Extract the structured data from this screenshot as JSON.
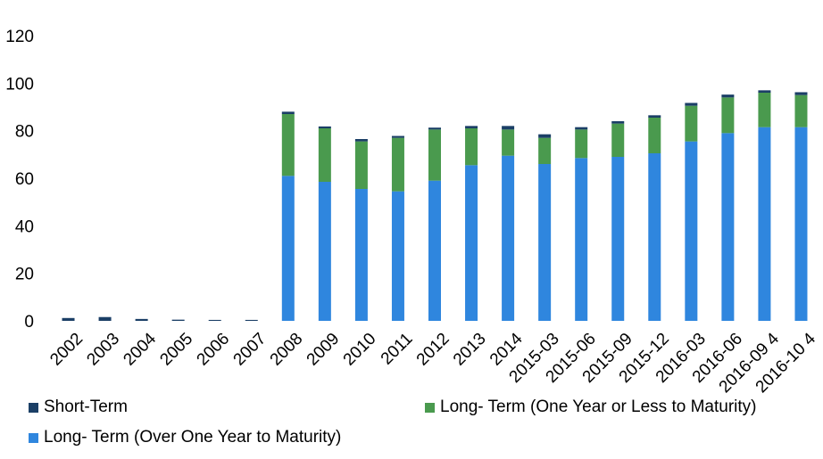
{
  "chart_data": {
    "type": "bar",
    "stacked": true,
    "categories": [
      "2002",
      "2003",
      "2004",
      "2005",
      "2006",
      "2007",
      "2008",
      "2009",
      "2010",
      "2011",
      "2012",
      "2013",
      "2014",
      "2015-03",
      "2015-06",
      "2015-09",
      "2015-12",
      "2016-03",
      "2016-06",
      "2016-09 4",
      "2016-10 4"
    ],
    "series": [
      {
        "name": "Long- Term (Over One Year to Maturity)",
        "color": "#2f86de",
        "values": [
          0,
          0,
          0,
          0,
          0,
          0,
          61,
          58.5,
          55.5,
          54.5,
          59,
          65.5,
          69.5,
          66,
          68.5,
          69,
          70.5,
          75.5,
          79,
          81.5,
          81.5
        ]
      },
      {
        "name": "Long- Term (One Year or Less to Maturity)",
        "color": "#4a9a4e",
        "values": [
          0,
          0,
          0,
          0,
          0,
          0,
          26,
          22.5,
          20,
          22.5,
          21.5,
          15.5,
          11,
          11,
          12,
          14,
          15,
          15,
          15,
          14.5,
          13.5
        ]
      },
      {
        "name": "Short-Term",
        "color": "#1b3f66",
        "values": [
          1.2,
          1.6,
          0.8,
          0.5,
          0.4,
          0.4,
          1,
          0.8,
          1,
          0.8,
          0.8,
          1,
          1.5,
          1.5,
          1,
          1,
          1,
          1.2,
          1.2,
          1,
          1.2
        ]
      }
    ],
    "ylim": [
      0,
      120
    ],
    "yticks": [
      "0",
      "20",
      "40",
      "60",
      "80",
      "100",
      "120"
    ],
    "grid": false,
    "legend_position": "bottom"
  }
}
